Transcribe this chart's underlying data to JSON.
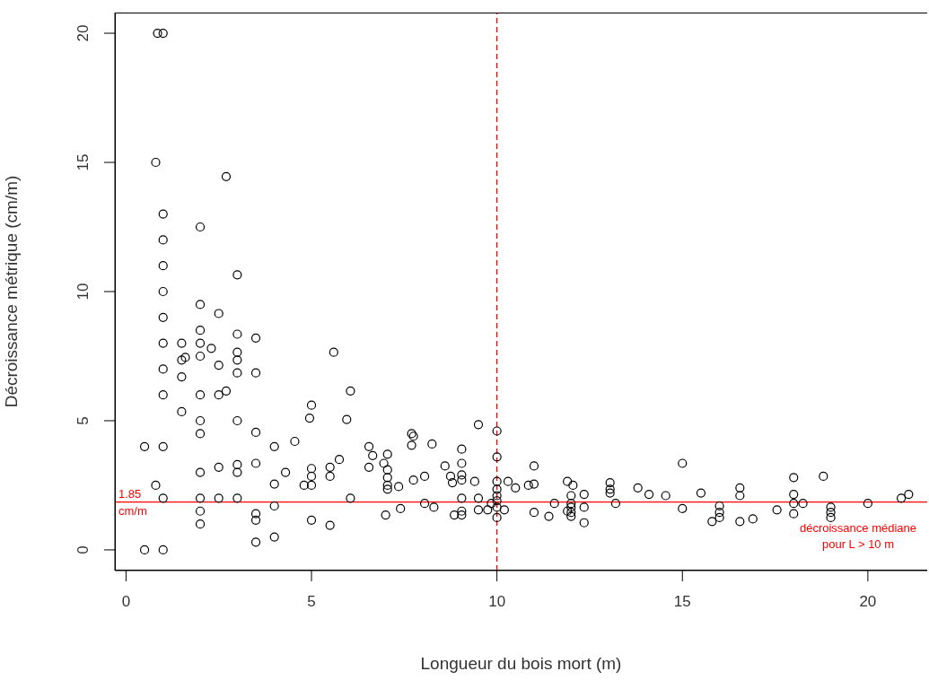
{
  "chart_data": {
    "type": "scatter",
    "xlabel": "Longueur du bois mort (m)",
    "ylabel": "Décroissance métrique (cm/m)",
    "xlim": [
      -0.3,
      21.6
    ],
    "ylim": [
      -0.8,
      20.8
    ],
    "xticks": [
      0,
      5,
      10,
      15,
      20
    ],
    "yticks": [
      0,
      5,
      10,
      15,
      20
    ],
    "grid": false,
    "legend": false,
    "marker": "circle",
    "series": [
      {
        "color": "#000000",
        "x": [
          0.85,
          1.0,
          0.8,
          1,
          1,
          1,
          1,
          1,
          1,
          1,
          1,
          1,
          1,
          1,
          0.5,
          0.5,
          0.8,
          2.7,
          2,
          3,
          2,
          2.5,
          2,
          3,
          3.5,
          1.5,
          2,
          2.3,
          1.6,
          1.5,
          2,
          3,
          3,
          2.5,
          3,
          3.5,
          1.5,
          2,
          2.5,
          2.7,
          1.5,
          2,
          3,
          2,
          3.5,
          3.5,
          3,
          3,
          2,
          2.5,
          2,
          2.5,
          3,
          2,
          2,
          3.5,
          3.5,
          3.5,
          4,
          4,
          4.3,
          4.55,
          4,
          4,
          5.6,
          6.05,
          5.95,
          5,
          4.95,
          5,
          5,
          5,
          4.8,
          5,
          5.5,
          5.5,
          5.5,
          5.75,
          6.05,
          6.55,
          6.65,
          6.55,
          6.95,
          7.05,
          7.05,
          7.05,
          7.05,
          7.05,
          7,
          7.35,
          7.4,
          7.7,
          7.75,
          7.7,
          7.75,
          8.25,
          8.05,
          8.05,
          8.3,
          8.6,
          8.75,
          8.8,
          9.05,
          9.05,
          9.05,
          9.05,
          9.05,
          9.05,
          9.05,
          8.85,
          9.5,
          9.4,
          9.5,
          9.5,
          9.75,
          10,
          10,
          10,
          10,
          10,
          10,
          10,
          10,
          9.85,
          10.2,
          10.3,
          10.5,
          10.85,
          11,
          11,
          11,
          11.4,
          11.55,
          11.9,
          12.05,
          12,
          12,
          12,
          12,
          12,
          11.9,
          12.35,
          12.35,
          12.35,
          13.05,
          13.05,
          13.05,
          13.2,
          13.8,
          14.1,
          14.55,
          15,
          15,
          15.5,
          15.8,
          16,
          16,
          16,
          16.55,
          16.55,
          16.55,
          16.9,
          17.55,
          18,
          18,
          18,
          18,
          18.25,
          18.8,
          19,
          19,
          19,
          20,
          20.9,
          21.1
        ],
        "values": [
          20,
          20,
          15,
          13,
          12,
          11,
          10,
          9,
          8,
          7,
          6,
          4,
          2,
          0,
          4,
          0,
          2.5,
          14.45,
          12.5,
          10.65,
          9.5,
          9.15,
          8.5,
          8.35,
          8.2,
          8,
          8,
          7.8,
          7.45,
          7.35,
          7.5,
          7.65,
          7.35,
          7.15,
          6.85,
          6.85,
          6.7,
          6,
          6,
          6.15,
          5.35,
          5,
          5,
          4.5,
          4.55,
          3.35,
          3.3,
          3,
          3,
          3.2,
          2,
          2,
          2,
          1.5,
          1,
          1.4,
          1.15,
          0.3,
          2.55,
          4,
          3,
          4.2,
          1.7,
          0.5,
          7.65,
          6.15,
          5.05,
          5.6,
          5.1,
          3.15,
          2.85,
          2.5,
          2.5,
          1.15,
          0.95,
          3.2,
          2.85,
          3.5,
          2,
          4,
          3.65,
          3.2,
          3.35,
          3.7,
          3.1,
          2.8,
          2.5,
          2.35,
          1.35,
          2.45,
          1.6,
          4.5,
          4.4,
          4.05,
          2.7,
          4.1,
          2.85,
          1.8,
          1.65,
          3.25,
          2.85,
          2.6,
          3.9,
          3.35,
          2.9,
          2.7,
          2,
          1.5,
          1.35,
          1.35,
          4.85,
          2.65,
          2,
          1.55,
          1.55,
          4.6,
          3.6,
          2.65,
          2.35,
          2.1,
          1.9,
          1.65,
          1.25,
          1.8,
          1.55,
          2.65,
          2.4,
          2.5,
          2.55,
          3.25,
          1.45,
          1.3,
          1.8,
          2.65,
          2.5,
          2.1,
          1.8,
          1.65,
          1.45,
          1.3,
          1.5,
          2.15,
          1.65,
          1.05,
          2.6,
          2.35,
          2.2,
          1.8,
          2.4,
          2.15,
          2.1,
          3.35,
          1.6,
          2.2,
          1.1,
          1.7,
          1.45,
          1.25,
          2.4,
          2.1,
          1.1,
          1.2,
          1.55,
          2.8,
          2.15,
          1.4,
          1.8,
          1.8,
          2.85,
          1.65,
          1.45,
          1.25,
          1.8,
          2,
          2.15
        ]
      }
    ],
    "ref_lines": [
      {
        "axis": "y",
        "value": 1.85,
        "label": "1.85 cm/m",
        "color": "#ff0000",
        "line_style": "solid"
      },
      {
        "axis": "x",
        "value": 10,
        "color": "#ff0000",
        "line_style": "dashed"
      }
    ],
    "annotations": [
      "décroissance médiane pour L > 10 m"
    ]
  }
}
